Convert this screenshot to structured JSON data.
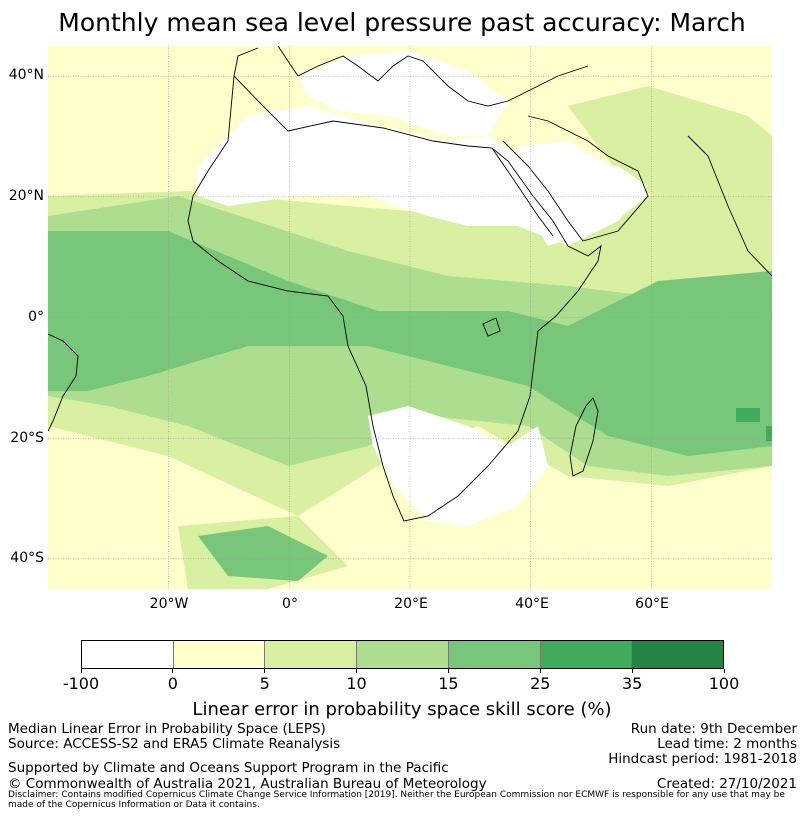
{
  "title": "Monthly mean sea level pressure past accuracy: March",
  "map": {
    "region": "Africa and surrounding oceans",
    "lat_range": [
      -45,
      45
    ],
    "lon_range": [
      -40,
      80
    ],
    "lat_labels": [
      "40°N",
      "20°N",
      "0°",
      "20°S",
      "40°S"
    ],
    "lat_values": [
      40,
      20,
      0,
      -20,
      -40
    ],
    "lon_labels": [
      "20°W",
      "0°",
      "20°E",
      "40°E",
      "60°E"
    ],
    "lon_values": [
      -20,
      0,
      20,
      40,
      60
    ],
    "land_color": "#ffffff",
    "coast_color": "#000000",
    "grid_color": "#999999"
  },
  "colorbar": {
    "bounds": [
      "-100",
      "0",
      "5",
      "10",
      "15",
      "25",
      "35",
      "100"
    ],
    "colors": [
      "#ffffff",
      "#ffffcc",
      "#d9f0a3",
      "#addd8e",
      "#78c679",
      "#41ab5d",
      "#238443"
    ],
    "label": "Linear error in probability space skill score (%)"
  },
  "info_left": {
    "line1": "Median Linear Error in Probability Space (LEPS)",
    "line2": "Source: ACCESS-S2 and ERA5 Climate Reanalysis",
    "line3": "Supported by Climate and Oceans Support Program in the Pacific",
    "line4": "© Commonwealth of Australia 2021, Australian Bureau of Meteorology"
  },
  "info_right": {
    "run_date": "Run date: 9th December",
    "lead_time": "Lead time: 2 months",
    "hindcast": "Hindcast period: 1981-2018",
    "created": "Created: 27/10/2021"
  },
  "disclaimer": "Disclaimer: Contains modified Copernicus Climate Change Service Information [2019]. Neither the European Commission nor ECMWF is responsible for any use that may be made of the Copernicus Information or Data it contains."
}
